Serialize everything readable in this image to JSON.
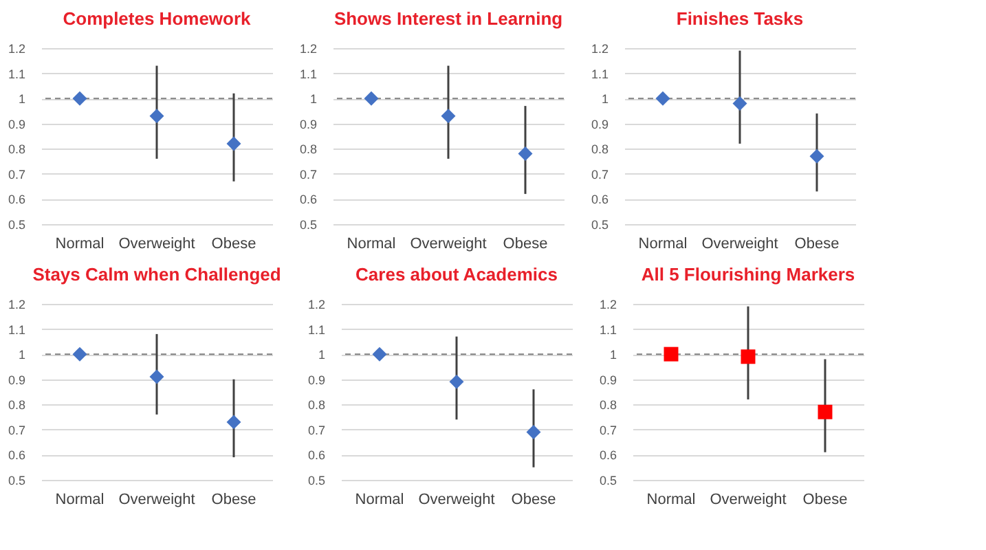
{
  "chart_data": [
    {
      "type": "scatter",
      "title": "Completes Homework",
      "categories": [
        "Normal",
        "Overweight",
        "Obese"
      ],
      "marker": "diamond",
      "grid": "y",
      "ylim": [
        0.5,
        1.2
      ],
      "yticks": [
        0.5,
        0.6,
        0.7,
        0.8,
        0.9,
        1,
        1.1,
        1.2
      ],
      "ref_lines": [
        {
          "axis": "y",
          "value": 1,
          "line_style": "dashed"
        }
      ],
      "series": [
        {
          "color": "#4472c4",
          "values": [
            1,
            0.93,
            0.82
          ],
          "errors": [
            null,
            [
              0.76,
              1.13
            ],
            [
              0.67,
              1.02
            ]
          ]
        }
      ]
    },
    {
      "type": "scatter",
      "title": "Shows Interest in Learning",
      "categories": [
        "Normal",
        "Overweight",
        "Obese"
      ],
      "marker": "diamond",
      "grid": "y",
      "ylim": [
        0.5,
        1.2
      ],
      "yticks": [
        0.5,
        0.6,
        0.7,
        0.8,
        0.9,
        1,
        1.1,
        1.2
      ],
      "ref_lines": [
        {
          "axis": "y",
          "value": 1,
          "line_style": "dashed"
        }
      ],
      "series": [
        {
          "color": "#4472c4",
          "values": [
            1,
            0.93,
            0.78
          ],
          "errors": [
            null,
            [
              0.76,
              1.13
            ],
            [
              0.62,
              0.97
            ]
          ]
        }
      ]
    },
    {
      "type": "scatter",
      "title": "Finishes Tasks",
      "categories": [
        "Normal",
        "Overweight",
        "Obese"
      ],
      "marker": "diamond",
      "grid": "y",
      "ylim": [
        0.5,
        1.2
      ],
      "yticks": [
        0.5,
        0.6,
        0.7,
        0.8,
        0.9,
        1,
        1.1,
        1.2
      ],
      "ref_lines": [
        {
          "axis": "y",
          "value": 1,
          "line_style": "dashed"
        }
      ],
      "series": [
        {
          "color": "#4472c4",
          "values": [
            1,
            0.98,
            0.77
          ],
          "errors": [
            null,
            [
              0.82,
              1.19
            ],
            [
              0.63,
              0.94
            ]
          ]
        }
      ]
    },
    {
      "type": "scatter",
      "title": "Stays Calm when Challenged",
      "categories": [
        "Normal",
        "Overweight",
        "Obese"
      ],
      "marker": "diamond",
      "grid": "y",
      "ylim": [
        0.5,
        1.2
      ],
      "yticks": [
        0.5,
        0.6,
        0.7,
        0.8,
        0.9,
        1,
        1.1,
        1.2
      ],
      "ref_lines": [
        {
          "axis": "y",
          "value": 1,
          "line_style": "dashed"
        }
      ],
      "series": [
        {
          "color": "#4472c4",
          "values": [
            1,
            0.91,
            0.73
          ],
          "errors": [
            null,
            [
              0.76,
              1.08
            ],
            [
              0.59,
              0.9
            ]
          ]
        }
      ]
    },
    {
      "type": "scatter",
      "title": "Cares about Academics",
      "categories": [
        "Normal",
        "Overweight",
        "Obese"
      ],
      "marker": "diamond",
      "grid": "y",
      "ylim": [
        0.5,
        1.2
      ],
      "yticks": [
        0.5,
        0.6,
        0.7,
        0.8,
        0.9,
        1,
        1.1,
        1.2
      ],
      "ref_lines": [
        {
          "axis": "y",
          "value": 1,
          "line_style": "dashed"
        }
      ],
      "series": [
        {
          "color": "#4472c4",
          "values": [
            1,
            0.89,
            0.69
          ],
          "errors": [
            null,
            [
              0.74,
              1.07
            ],
            [
              0.55,
              0.86
            ]
          ]
        }
      ]
    },
    {
      "type": "scatter",
      "title": "All 5 Flourishing Markers",
      "categories": [
        "Normal",
        "Overweight",
        "Obese"
      ],
      "marker": "square",
      "grid": "y",
      "ylim": [
        0.5,
        1.2
      ],
      "yticks": [
        0.5,
        0.6,
        0.7,
        0.8,
        0.9,
        1,
        1.1,
        1.2
      ],
      "ref_lines": [
        {
          "axis": "y",
          "value": 1,
          "line_style": "dashed"
        }
      ],
      "series": [
        {
          "color": "#ff0000",
          "values": [
            1,
            0.99,
            0.77
          ],
          "errors": [
            null,
            [
              0.82,
              1.19
            ],
            [
              0.61,
              0.98
            ]
          ]
        }
      ]
    }
  ]
}
